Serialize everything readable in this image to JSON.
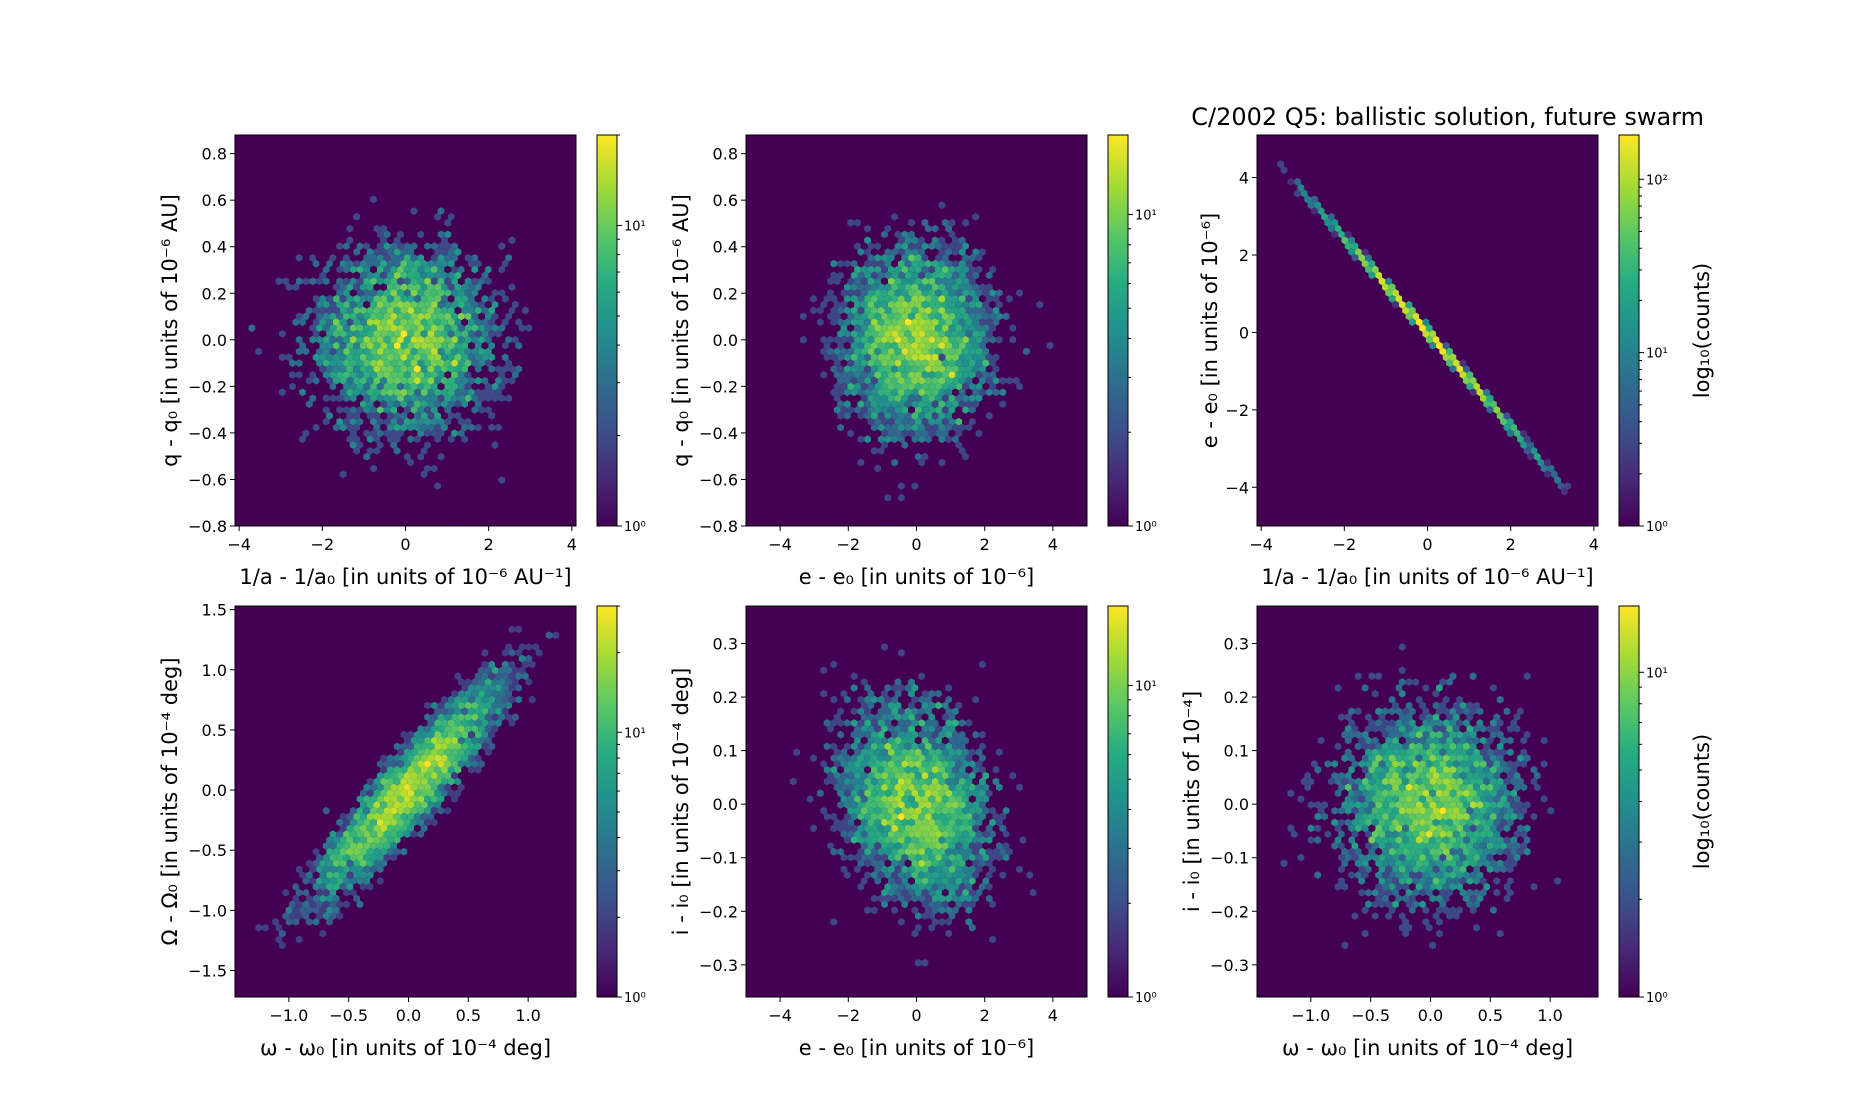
{
  "title": "C/2002 Q5:  ballistic solution, future swarm",
  "chart_data": [
    {
      "type": "heatmap",
      "subtype": "hexbin",
      "xlabel": "1/a - 1/a₀ [in units of 10⁻⁶ AU⁻¹]",
      "ylabel": "q - q₀ [in units of 10⁻⁶ AU]",
      "xlim": [
        -4.1,
        4.1
      ],
      "ylim": [
        -0.8,
        0.88
      ],
      "xticks": [
        -4,
        -2,
        0,
        2,
        4
      ],
      "yticks": [
        -0.8,
        -0.6,
        -0.4,
        -0.2,
        0.0,
        0.2,
        0.4,
        0.6,
        0.8
      ],
      "colorbar": {
        "scale": "log",
        "range": [
          1,
          20
        ],
        "ticks": [
          "10⁰",
          "10¹"
        ],
        "label": ""
      }
    },
    {
      "type": "heatmap",
      "subtype": "hexbin",
      "xlabel": "e - e₀ [in units of 10⁻⁶]",
      "ylabel": "q - q₀ [in units of 10⁻⁶ AU]",
      "xlim": [
        -5,
        5
      ],
      "ylim": [
        -0.8,
        0.88
      ],
      "xticks": [
        -4,
        -2,
        0,
        2,
        4
      ],
      "yticks": [
        -0.8,
        -0.6,
        -0.4,
        -0.2,
        0.0,
        0.2,
        0.4,
        0.6,
        0.8
      ],
      "colorbar": {
        "scale": "log",
        "range": [
          1,
          18
        ],
        "ticks": [
          "10⁰",
          "10¹"
        ],
        "label": ""
      }
    },
    {
      "type": "heatmap",
      "subtype": "hexbin",
      "xlabel": "1/a - 1/a₀ [in units of 10⁻⁶ AU⁻¹]",
      "ylabel": "e - e₀ [in units of 10⁻⁶]",
      "xlim": [
        -4.1,
        4.1
      ],
      "ylim": [
        -5,
        5.1
      ],
      "xticks": [
        -4,
        -2,
        0,
        2,
        4
      ],
      "yticks": [
        -4,
        -2,
        0,
        2,
        4
      ],
      "colorbar": {
        "scale": "log",
        "range": [
          1,
          180
        ],
        "ticks": [
          "10⁰",
          "10¹",
          "10²"
        ],
        "label": "log₁₀(counts)"
      }
    },
    {
      "type": "heatmap",
      "subtype": "hexbin",
      "xlabel": "ω - ω₀ [in units of 10⁻⁴ deg]",
      "ylabel": "Ω - Ω₀ [in units of 10⁻⁴ deg]",
      "xlim": [
        -1.45,
        1.4
      ],
      "ylim": [
        -1.72,
        1.53
      ],
      "xticks": [
        -1.0,
        -0.5,
        0.0,
        0.5,
        1.0
      ],
      "yticks": [
        -1.5,
        -1.0,
        -0.5,
        0.0,
        0.5,
        1.0,
        1.5
      ],
      "colorbar": {
        "scale": "log",
        "range": [
          1,
          30
        ],
        "ticks": [
          "10⁰",
          "10¹"
        ],
        "label": ""
      }
    },
    {
      "type": "heatmap",
      "subtype": "hexbin",
      "xlabel": "e - e₀ [in units of 10⁻⁶]",
      "ylabel": "i - i₀ [in units of 10⁻⁴ deg]",
      "xlim": [
        -5,
        5
      ],
      "ylim": [
        -0.36,
        0.37
      ],
      "xticks": [
        -4,
        -2,
        0,
        2,
        4
      ],
      "yticks": [
        -0.3,
        -0.2,
        -0.1,
        0.0,
        0.1,
        0.2,
        0.3
      ],
      "colorbar": {
        "scale": "log",
        "range": [
          1,
          18
        ],
        "ticks": [
          "10⁰",
          "10¹"
        ],
        "label": ""
      }
    },
    {
      "type": "heatmap",
      "subtype": "hexbin",
      "xlabel": "ω - ω₀ [in units of 10⁻⁴ deg]",
      "ylabel": "i - i₀ [in units of 10⁻⁴]",
      "xlim": [
        -1.45,
        1.4
      ],
      "ylim": [
        -0.36,
        0.37
      ],
      "xticks": [
        -1.0,
        -0.5,
        0.0,
        0.5,
        1.0
      ],
      "yticks": [
        -0.3,
        -0.2,
        -0.1,
        0.0,
        0.1,
        0.2,
        0.3
      ],
      "colorbar": {
        "scale": "log",
        "range": [
          1,
          16
        ],
        "ticks": [
          "10⁰",
          "10¹"
        ],
        "label": "log₁₀(counts)"
      }
    }
  ]
}
